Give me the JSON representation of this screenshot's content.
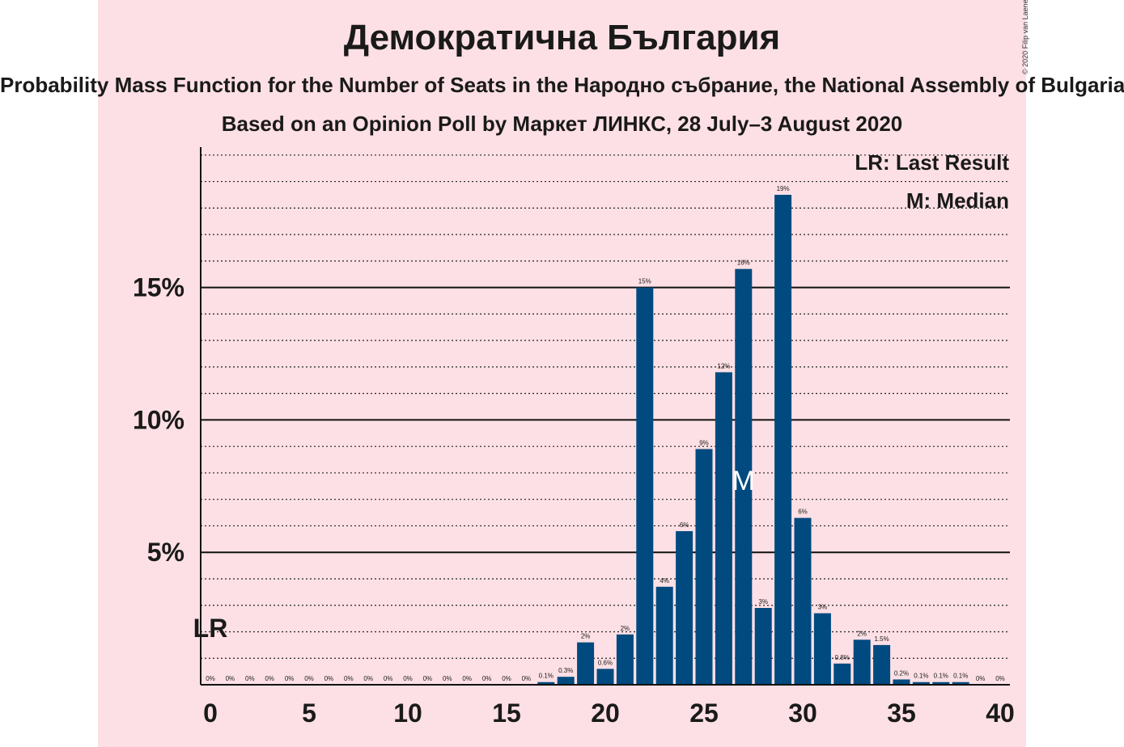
{
  "header": {
    "title": "Демократична България",
    "subtitle": "Probability Mass Function for the Number of Seats in the Народно събрание, the National Assembly of Bulgaria",
    "subtitle2": "Based on an Opinion Poll by Маркет ЛИНКС, 28 July–3 August 2020",
    "copyright": "© 2020 Filip van Laenen"
  },
  "legend": {
    "lr": "LR: Last Result",
    "median": "M: Median"
  },
  "markers": {
    "lr_label": "LR",
    "lr_seat": 0,
    "median_label": "M",
    "median_seat": 27
  },
  "colors": {
    "bar": "#004a7f",
    "panel": "#fde0e5",
    "median_text": "#ffffff"
  },
  "chart_data": {
    "type": "bar",
    "x": [
      0,
      1,
      2,
      3,
      4,
      5,
      6,
      7,
      8,
      9,
      10,
      11,
      12,
      13,
      14,
      15,
      16,
      17,
      18,
      19,
      20,
      21,
      22,
      23,
      24,
      25,
      26,
      27,
      28,
      29,
      30,
      31,
      32,
      33,
      34,
      35,
      36,
      37,
      38,
      39,
      40
    ],
    "values": [
      0,
      0,
      0,
      0,
      0,
      0,
      0,
      0,
      0,
      0,
      0,
      0,
      0,
      0,
      0,
      0,
      0,
      0.1,
      0.3,
      1.6,
      0.6,
      1.9,
      15.0,
      3.7,
      5.8,
      8.9,
      11.8,
      15.7,
      2.9,
      18.5,
      6.3,
      2.7,
      0.8,
      1.7,
      1.5,
      0.2,
      0.1,
      0.1,
      0.1,
      0,
      0
    ],
    "value_labels": [
      "0%",
      "0%",
      "0%",
      "0%",
      "0%",
      "0%",
      "0%",
      "0%",
      "0%",
      "0%",
      "0%",
      "0%",
      "0%",
      "0%",
      "0%",
      "0%",
      "0%",
      "0.1%",
      "0.3%",
      "2%",
      "0.6%",
      "2%",
      "15%",
      "4%",
      "6%",
      "9%",
      "12%",
      "16%",
      "3%",
      "19%",
      "6%",
      "3%",
      "0.8%",
      "2%",
      "1.5%",
      "0.2%",
      "0.1%",
      "0.1%",
      "0.1%",
      "0%",
      "0%"
    ],
    "x_ticks": [
      0,
      5,
      10,
      15,
      20,
      25,
      30,
      35,
      40
    ],
    "x_tick_labels": [
      "0",
      "5",
      "10",
      "15",
      "20",
      "25",
      "30",
      "35",
      "40"
    ],
    "y_ticks": [
      5,
      10,
      15
    ],
    "y_tick_labels": [
      "5%",
      "10%",
      "15%"
    ],
    "y_minor_step": 1,
    "ylim": [
      0,
      20.3
    ],
    "xlabel": "",
    "ylabel": ""
  }
}
